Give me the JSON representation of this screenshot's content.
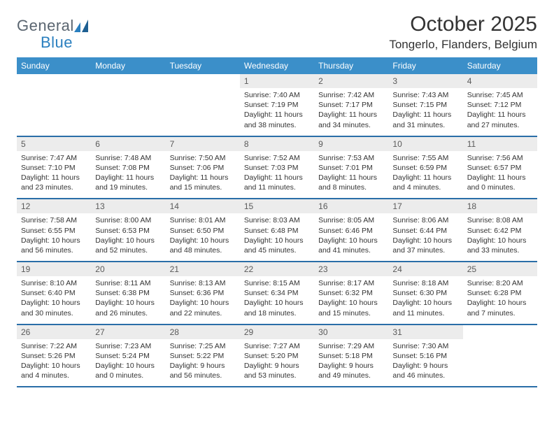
{
  "brand": {
    "text_a": "General",
    "text_b": "Blue"
  },
  "title": "October 2025",
  "location": "Tongerlo, Flanders, Belgium",
  "colors": {
    "header_bg": "#3b8fc9",
    "week_border": "#2a6ea8",
    "daynum_bg": "#ececec",
    "text": "#333333",
    "logo_gray": "#5a6570",
    "logo_blue": "#2a7fbf"
  },
  "weekdays": [
    "Sunday",
    "Monday",
    "Tuesday",
    "Wednesday",
    "Thursday",
    "Friday",
    "Saturday"
  ],
  "weeks": [
    [
      {
        "n": "",
        "sr": "",
        "ss": "",
        "dl": ""
      },
      {
        "n": "",
        "sr": "",
        "ss": "",
        "dl": ""
      },
      {
        "n": "",
        "sr": "",
        "ss": "",
        "dl": ""
      },
      {
        "n": "1",
        "sr": "Sunrise: 7:40 AM",
        "ss": "Sunset: 7:19 PM",
        "dl": "Daylight: 11 hours and 38 minutes."
      },
      {
        "n": "2",
        "sr": "Sunrise: 7:42 AM",
        "ss": "Sunset: 7:17 PM",
        "dl": "Daylight: 11 hours and 34 minutes."
      },
      {
        "n": "3",
        "sr": "Sunrise: 7:43 AM",
        "ss": "Sunset: 7:15 PM",
        "dl": "Daylight: 11 hours and 31 minutes."
      },
      {
        "n": "4",
        "sr": "Sunrise: 7:45 AM",
        "ss": "Sunset: 7:12 PM",
        "dl": "Daylight: 11 hours and 27 minutes."
      }
    ],
    [
      {
        "n": "5",
        "sr": "Sunrise: 7:47 AM",
        "ss": "Sunset: 7:10 PM",
        "dl": "Daylight: 11 hours and 23 minutes."
      },
      {
        "n": "6",
        "sr": "Sunrise: 7:48 AM",
        "ss": "Sunset: 7:08 PM",
        "dl": "Daylight: 11 hours and 19 minutes."
      },
      {
        "n": "7",
        "sr": "Sunrise: 7:50 AM",
        "ss": "Sunset: 7:06 PM",
        "dl": "Daylight: 11 hours and 15 minutes."
      },
      {
        "n": "8",
        "sr": "Sunrise: 7:52 AM",
        "ss": "Sunset: 7:03 PM",
        "dl": "Daylight: 11 hours and 11 minutes."
      },
      {
        "n": "9",
        "sr": "Sunrise: 7:53 AM",
        "ss": "Sunset: 7:01 PM",
        "dl": "Daylight: 11 hours and 8 minutes."
      },
      {
        "n": "10",
        "sr": "Sunrise: 7:55 AM",
        "ss": "Sunset: 6:59 PM",
        "dl": "Daylight: 11 hours and 4 minutes."
      },
      {
        "n": "11",
        "sr": "Sunrise: 7:56 AM",
        "ss": "Sunset: 6:57 PM",
        "dl": "Daylight: 11 hours and 0 minutes."
      }
    ],
    [
      {
        "n": "12",
        "sr": "Sunrise: 7:58 AM",
        "ss": "Sunset: 6:55 PM",
        "dl": "Daylight: 10 hours and 56 minutes."
      },
      {
        "n": "13",
        "sr": "Sunrise: 8:00 AM",
        "ss": "Sunset: 6:53 PM",
        "dl": "Daylight: 10 hours and 52 minutes."
      },
      {
        "n": "14",
        "sr": "Sunrise: 8:01 AM",
        "ss": "Sunset: 6:50 PM",
        "dl": "Daylight: 10 hours and 48 minutes."
      },
      {
        "n": "15",
        "sr": "Sunrise: 8:03 AM",
        "ss": "Sunset: 6:48 PM",
        "dl": "Daylight: 10 hours and 45 minutes."
      },
      {
        "n": "16",
        "sr": "Sunrise: 8:05 AM",
        "ss": "Sunset: 6:46 PM",
        "dl": "Daylight: 10 hours and 41 minutes."
      },
      {
        "n": "17",
        "sr": "Sunrise: 8:06 AM",
        "ss": "Sunset: 6:44 PM",
        "dl": "Daylight: 10 hours and 37 minutes."
      },
      {
        "n": "18",
        "sr": "Sunrise: 8:08 AM",
        "ss": "Sunset: 6:42 PM",
        "dl": "Daylight: 10 hours and 33 minutes."
      }
    ],
    [
      {
        "n": "19",
        "sr": "Sunrise: 8:10 AM",
        "ss": "Sunset: 6:40 PM",
        "dl": "Daylight: 10 hours and 30 minutes."
      },
      {
        "n": "20",
        "sr": "Sunrise: 8:11 AM",
        "ss": "Sunset: 6:38 PM",
        "dl": "Daylight: 10 hours and 26 minutes."
      },
      {
        "n": "21",
        "sr": "Sunrise: 8:13 AM",
        "ss": "Sunset: 6:36 PM",
        "dl": "Daylight: 10 hours and 22 minutes."
      },
      {
        "n": "22",
        "sr": "Sunrise: 8:15 AM",
        "ss": "Sunset: 6:34 PM",
        "dl": "Daylight: 10 hours and 18 minutes."
      },
      {
        "n": "23",
        "sr": "Sunrise: 8:17 AM",
        "ss": "Sunset: 6:32 PM",
        "dl": "Daylight: 10 hours and 15 minutes."
      },
      {
        "n": "24",
        "sr": "Sunrise: 8:18 AM",
        "ss": "Sunset: 6:30 PM",
        "dl": "Daylight: 10 hours and 11 minutes."
      },
      {
        "n": "25",
        "sr": "Sunrise: 8:20 AM",
        "ss": "Sunset: 6:28 PM",
        "dl": "Daylight: 10 hours and 7 minutes."
      }
    ],
    [
      {
        "n": "26",
        "sr": "Sunrise: 7:22 AM",
        "ss": "Sunset: 5:26 PM",
        "dl": "Daylight: 10 hours and 4 minutes."
      },
      {
        "n": "27",
        "sr": "Sunrise: 7:23 AM",
        "ss": "Sunset: 5:24 PM",
        "dl": "Daylight: 10 hours and 0 minutes."
      },
      {
        "n": "28",
        "sr": "Sunrise: 7:25 AM",
        "ss": "Sunset: 5:22 PM",
        "dl": "Daylight: 9 hours and 56 minutes."
      },
      {
        "n": "29",
        "sr": "Sunrise: 7:27 AM",
        "ss": "Sunset: 5:20 PM",
        "dl": "Daylight: 9 hours and 53 minutes."
      },
      {
        "n": "30",
        "sr": "Sunrise: 7:29 AM",
        "ss": "Sunset: 5:18 PM",
        "dl": "Daylight: 9 hours and 49 minutes."
      },
      {
        "n": "31",
        "sr": "Sunrise: 7:30 AM",
        "ss": "Sunset: 5:16 PM",
        "dl": "Daylight: 9 hours and 46 minutes."
      },
      {
        "n": "",
        "sr": "",
        "ss": "",
        "dl": ""
      }
    ]
  ]
}
